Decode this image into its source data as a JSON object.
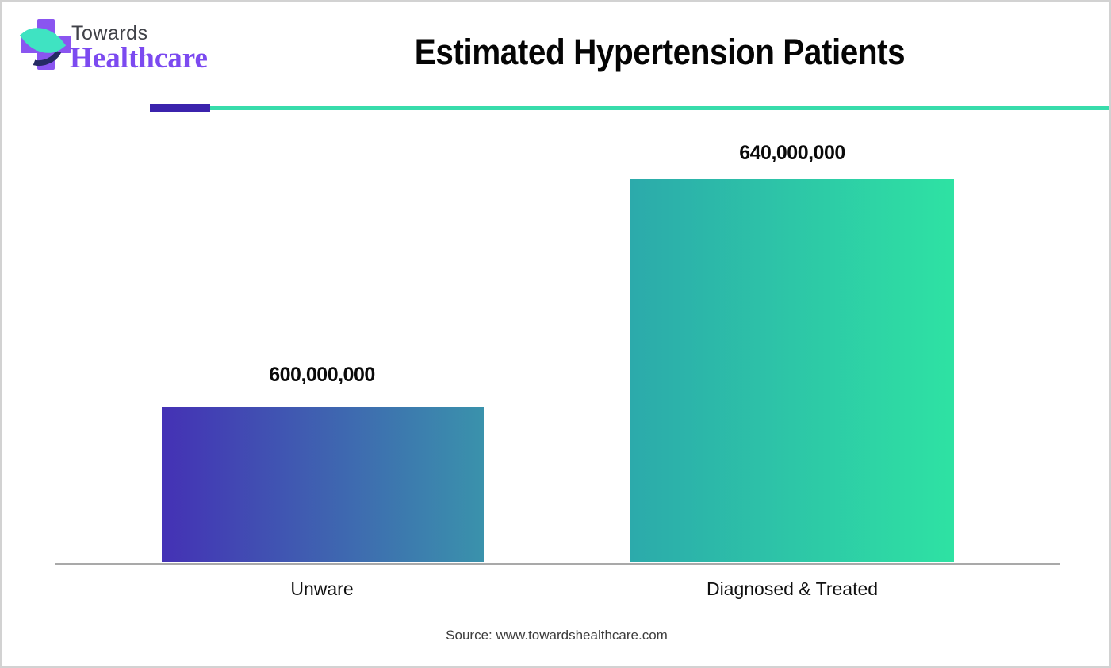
{
  "logo": {
    "brand_top": "Towards",
    "brand_bottom": "Healthcare",
    "cross_color": "#8a55f0",
    "leaf_color": "#3fe3c2",
    "swoosh_color": "#252a63",
    "brand_top_color": "#404248",
    "brand_bottom_color": "#7c4af0"
  },
  "header": {
    "title": "Estimated Hypertension Patients",
    "divider_accent_color": "#3b23ad",
    "divider_line_color": "#38dcab"
  },
  "chart_data": {
    "type": "bar",
    "title": "Estimated Hypertension Patients",
    "categories": [
      "Unware",
      "Diagnosed & Treated"
    ],
    "values": [
      600000000,
      640000000
    ],
    "value_labels": [
      "600,000,000",
      "640,000,000"
    ],
    "xlabel": "",
    "ylabel": "",
    "grid": false,
    "legend": false,
    "axis_color": "#a9a9a9",
    "bar_gradients": [
      {
        "from": "#4431b5",
        "to": "#3a92ac"
      },
      {
        "from": "#2caaab",
        "to": "#2ee2a3"
      }
    ]
  },
  "footer": {
    "source": "Source: www.towardshealthcare.com"
  }
}
